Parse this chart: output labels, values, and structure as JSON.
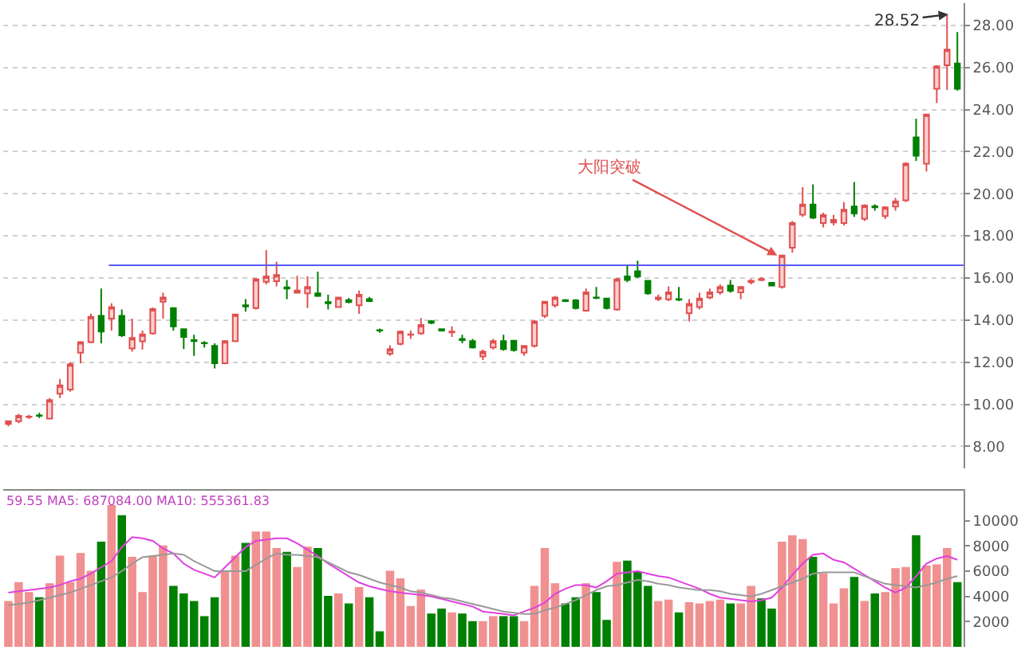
{
  "chart_data": [
    {
      "type": "candlestick",
      "categories": [
        null,
        null,
        null,
        null,
        null,
        null,
        null,
        null,
        null,
        null,
        null,
        null,
        null,
        null,
        null,
        null,
        null,
        null,
        null,
        null,
        null,
        null,
        null,
        null,
        null,
        null,
        null,
        null,
        null,
        null,
        null,
        null,
        null,
        null,
        null,
        null,
        null,
        null,
        null,
        null,
        null,
        null,
        null,
        null,
        null,
        null,
        null,
        null,
        null,
        null,
        null,
        null,
        null,
        null,
        null,
        null,
        null,
        null,
        null,
        null,
        null,
        null,
        null,
        null,
        null,
        null,
        null,
        null,
        null,
        null,
        null,
        null,
        null,
        null,
        null,
        null,
        null,
        null,
        null,
        null,
        null,
        null,
        null,
        null,
        null,
        null,
        null,
        null,
        null,
        null,
        null,
        null,
        null
      ],
      "ohlc": [
        [
          9.07,
          9.2,
          8.95,
          9.2
        ],
        [
          9.2,
          9.55,
          9.1,
          9.45
        ],
        [
          9.4,
          9.5,
          9.3,
          9.42
        ],
        [
          9.47,
          9.6,
          9.35,
          9.45
        ],
        [
          9.32,
          10.3,
          9.3,
          10.2
        ],
        [
          10.5,
          11.2,
          10.3,
          10.9
        ],
        [
          10.7,
          12.0,
          10.6,
          11.9
        ],
        [
          12.45,
          13.0,
          11.95,
          12.95
        ],
        [
          12.95,
          14.3,
          12.9,
          14.15
        ],
        [
          14.2,
          15.5,
          12.9,
          13.45
        ],
        [
          14.07,
          14.8,
          13.5,
          14.62
        ],
        [
          14.2,
          14.5,
          13.2,
          13.27
        ],
        [
          12.65,
          14.07,
          12.5,
          13.15
        ],
        [
          12.99,
          13.5,
          12.6,
          13.32
        ],
        [
          13.37,
          14.6,
          13.3,
          14.52
        ],
        [
          14.87,
          15.3,
          14.07,
          15.07
        ],
        [
          14.57,
          14.6,
          13.5,
          13.7
        ],
        [
          13.57,
          13.6,
          12.62,
          13.2
        ],
        [
          13.05,
          13.3,
          12.3,
          13.0
        ],
        [
          12.92,
          13.0,
          12.7,
          12.9
        ],
        [
          12.77,
          12.9,
          11.7,
          11.95
        ],
        [
          11.95,
          13.05,
          11.9,
          13.0
        ],
        [
          13.0,
          14.3,
          12.95,
          14.27
        ],
        [
          14.7,
          15.0,
          14.4,
          14.65
        ],
        [
          14.57,
          16.0,
          14.5,
          15.94
        ],
        [
          15.82,
          17.32,
          15.7,
          16.07
        ],
        [
          15.85,
          16.77,
          15.6,
          16.14
        ],
        [
          15.55,
          15.9,
          15.0,
          15.5
        ],
        [
          15.3,
          16.1,
          15.3,
          15.4
        ],
        [
          15.27,
          16.07,
          14.57,
          15.57
        ],
        [
          15.27,
          16.3,
          15.1,
          15.15
        ],
        [
          14.85,
          15.2,
          14.5,
          14.8
        ],
        [
          14.62,
          15.1,
          14.6,
          15.07
        ],
        [
          14.95,
          15.05,
          14.8,
          14.85
        ],
        [
          14.7,
          15.4,
          14.3,
          15.2
        ],
        [
          15.0,
          15.1,
          14.85,
          14.9
        ],
        [
          13.52,
          13.6,
          13.4,
          13.5
        ],
        [
          12.4,
          12.8,
          12.3,
          12.62
        ],
        [
          12.87,
          13.5,
          12.8,
          13.45
        ],
        [
          13.3,
          13.5,
          13.1,
          13.32
        ],
        [
          13.37,
          14.1,
          13.3,
          13.77
        ],
        [
          13.95,
          14.0,
          13.8,
          13.87
        ],
        [
          13.57,
          13.6,
          13.45,
          13.5
        ],
        [
          13.42,
          13.7,
          13.2,
          13.45
        ],
        [
          13.1,
          13.3,
          12.9,
          13.05
        ],
        [
          13.0,
          13.1,
          12.65,
          12.7
        ],
        [
          12.27,
          12.6,
          12.1,
          12.5
        ],
        [
          12.7,
          13.1,
          12.6,
          13.0
        ],
        [
          13.0,
          13.3,
          12.55,
          12.62
        ],
        [
          13.02,
          13.05,
          12.5,
          12.57
        ],
        [
          12.45,
          12.8,
          12.3,
          12.77
        ],
        [
          12.77,
          14.0,
          12.7,
          13.94
        ],
        [
          14.2,
          14.9,
          14.1,
          14.87
        ],
        [
          14.7,
          15.15,
          14.6,
          15.07
        ],
        [
          14.95,
          15.0,
          14.85,
          14.9
        ],
        [
          14.94,
          15.0,
          14.5,
          14.57
        ],
        [
          14.45,
          15.5,
          14.4,
          15.32
        ],
        [
          15.07,
          15.57,
          15.0,
          15.05
        ],
        [
          15.02,
          15.05,
          14.5,
          14.57
        ],
        [
          14.5,
          16.0,
          14.45,
          15.94
        ],
        [
          16.07,
          16.57,
          15.8,
          15.9
        ],
        [
          16.32,
          16.82,
          16.0,
          16.07
        ],
        [
          15.87,
          15.9,
          15.2,
          15.27
        ],
        [
          15.0,
          15.2,
          14.9,
          15.07
        ],
        [
          14.99,
          15.6,
          14.9,
          15.32
        ],
        [
          15.0,
          15.57,
          14.9,
          14.97
        ],
        [
          14.32,
          15.0,
          13.94,
          14.77
        ],
        [
          14.62,
          15.3,
          14.5,
          15.02
        ],
        [
          15.07,
          15.5,
          15.0,
          15.32
        ],
        [
          15.32,
          15.7,
          15.2,
          15.57
        ],
        [
          15.64,
          15.9,
          15.3,
          15.39
        ],
        [
          15.32,
          15.6,
          15.0,
          15.57
        ],
        [
          15.8,
          15.95,
          15.7,
          15.87
        ],
        [
          15.9,
          16.05,
          15.85,
          15.95
        ],
        [
          15.77,
          15.8,
          15.6,
          15.64
        ],
        [
          15.57,
          17.1,
          15.5,
          17.07
        ],
        [
          17.44,
          18.7,
          17.2,
          18.61
        ],
        [
          19.01,
          20.31,
          18.9,
          19.49
        ],
        [
          19.49,
          20.44,
          18.8,
          18.86
        ],
        [
          18.61,
          19.1,
          18.4,
          18.99
        ],
        [
          18.64,
          19.0,
          18.5,
          18.76
        ],
        [
          18.61,
          19.6,
          18.5,
          19.24
        ],
        [
          19.39,
          20.56,
          18.9,
          19.06
        ],
        [
          18.81,
          19.5,
          18.7,
          19.44
        ],
        [
          19.4,
          19.5,
          19.2,
          19.36
        ],
        [
          18.94,
          19.4,
          18.8,
          19.36
        ],
        [
          19.39,
          19.8,
          19.2,
          19.64
        ],
        [
          19.69,
          21.5,
          19.6,
          21.43
        ],
        [
          22.68,
          23.56,
          21.56,
          21.81
        ],
        [
          21.43,
          23.8,
          21.06,
          23.76
        ],
        [
          24.98,
          26.1,
          24.31,
          26.05
        ],
        [
          26.1,
          28.52,
          24.93,
          26.85
        ],
        [
          26.18,
          27.68,
          24.9,
          24.98
        ]
      ],
      "ref_lines": [
        {
          "axis": "y",
          "value": 16.6,
          "color": "#5a5af0"
        }
      ],
      "ylim": [
        6.95,
        29.05
      ],
      "yticks": [
        {
          "value": 8,
          "label": "8.00"
        },
        {
          "value": 10,
          "label": "10.00"
        },
        {
          "value": 12,
          "label": "12.00"
        },
        {
          "value": 14,
          "label": "14.00"
        },
        {
          "value": 16,
          "label": "16.00"
        },
        {
          "value": 18,
          "label": "18.00"
        },
        {
          "value": 20,
          "label": "20.00"
        },
        {
          "value": 22,
          "label": "22.00"
        },
        {
          "value": 24,
          "label": "24.00"
        },
        {
          "value": 26,
          "label": "26.00"
        },
        {
          "value": 28,
          "label": "28.00"
        }
      ],
      "grid": "y",
      "tick_labels": "y",
      "annotations": [
        "大阳突破",
        "28.52"
      ]
    },
    {
      "type": "bar",
      "categories": [
        null,
        null,
        null,
        null,
        null,
        null,
        null,
        null,
        null,
        null,
        null,
        null,
        null,
        null,
        null,
        null,
        null,
        null,
        null,
        null,
        null,
        null,
        null,
        null,
        null,
        null,
        null,
        null,
        null,
        null,
        null,
        null,
        null,
        null,
        null,
        null,
        null,
        null,
        null,
        null,
        null,
        null,
        null,
        null,
        null,
        null,
        null,
        null,
        null,
        null,
        null,
        null,
        null,
        null,
        null,
        null,
        null,
        null,
        null,
        null,
        null,
        null,
        null,
        null,
        null,
        null,
        null,
        null,
        null,
        null,
        null,
        null,
        null,
        null,
        null,
        null,
        null,
        null,
        null,
        null,
        null,
        null,
        null,
        null,
        null,
        null,
        null,
        null,
        null,
        null,
        null,
        null,
        null
      ],
      "values": [
        3600,
        5100,
        4300,
        3900,
        5000,
        7200,
        5100,
        7400,
        6000,
        8300,
        11200,
        10400,
        7100,
        4300,
        7200,
        8000,
        4800,
        4200,
        3600,
        2400,
        3900,
        5900,
        7200,
        8200,
        9100,
        9100,
        7800,
        7500,
        6300,
        7900,
        7800,
        4000,
        4200,
        3400,
        4700,
        3900,
        1200,
        6000,
        5400,
        3200,
        4500,
        2600,
        3000,
        2700,
        2600,
        2000,
        2000,
        2400,
        2400,
        2400,
        2000,
        4800,
        7800,
        5000,
        3400,
        3900,
        5000,
        4300,
        2100,
        6700,
        6800,
        5900,
        4800,
        3600,
        3700,
        2700,
        3500,
        3400,
        3600,
        3700,
        3400,
        3400,
        4800,
        3800,
        3000,
        8300,
        8800,
        8500,
        7100,
        5800,
        3400,
        4600,
        5500,
        3600,
        4200,
        4300,
        6200,
        6300,
        8800,
        6400,
        6500,
        7800,
        5100
      ],
      "colors": [
        "#f09090",
        "#f09090",
        "#f09090",
        "#008000",
        "#f09090",
        "#f09090",
        "#f09090",
        "#f09090",
        "#f09090",
        "#008000",
        "#f09090",
        "#008000",
        "#f09090",
        "#f09090",
        "#f09090",
        "#f09090",
        "#008000",
        "#008000",
        "#008000",
        "#008000",
        "#008000",
        "#f09090",
        "#f09090",
        "#008000",
        "#f09090",
        "#f09090",
        "#f09090",
        "#008000",
        "#f09090",
        "#f09090",
        "#008000",
        "#008000",
        "#f09090",
        "#008000",
        "#f09090",
        "#008000",
        "#008000",
        "#f09090",
        "#f09090",
        "#f09090",
        "#f09090",
        "#008000",
        "#008000",
        "#f09090",
        "#008000",
        "#008000",
        "#f09090",
        "#f09090",
        "#008000",
        "#008000",
        "#f09090",
        "#f09090",
        "#f09090",
        "#f09090",
        "#008000",
        "#008000",
        "#f09090",
        "#008000",
        "#008000",
        "#f09090",
        "#008000",
        "#008000",
        "#008000",
        "#f09090",
        "#f09090",
        "#008000",
        "#f09090",
        "#f09090",
        "#f09090",
        "#f09090",
        "#008000",
        "#f09090",
        "#f09090",
        "#008000",
        "#008000",
        "#f09090",
        "#f09090",
        "#f09090",
        "#008000",
        "#f09090",
        "#f09090",
        "#f09090",
        "#008000",
        "#f09090",
        "#008000",
        "#f09090",
        "#f09090",
        "#f09090",
        "#008000",
        "#f09090",
        "#f09090",
        "#f09090",
        "#008000"
      ],
      "series": [
        {
          "type": "line",
          "color": "#e040e0",
          "values": [
            4300,
            4400,
            4500,
            4600,
            4700,
            4900,
            5200,
            5400,
            5800,
            6300,
            6800,
            7900,
            8700,
            8600,
            8400,
            7800,
            7400,
            6600,
            6100,
            5800,
            5500,
            6300,
            7100,
            7900,
            8400,
            8500,
            8600,
            8600,
            8200,
            7700,
            7200,
            6600,
            6100,
            5600,
            5100,
            4800,
            4600,
            4400,
            4300,
            4200,
            4100,
            4000,
            3800,
            3600,
            3400,
            3200,
            2800,
            2700,
            2600,
            2500,
            2800,
            3100,
            3500,
            4200,
            4600,
            4900,
            4900,
            4700,
            5200,
            5800,
            5900,
            6000,
            5800,
            5600,
            5500,
            5200,
            4900,
            4600,
            4200,
            3900,
            3800,
            3700,
            3600,
            3700,
            3900,
            4700,
            5700,
            6600,
            7300,
            7400,
            6900,
            6700,
            6200,
            5700,
            5200,
            4700,
            4300,
            4700,
            5600,
            6600,
            7000,
            7200,
            6900
          ]
        },
        {
          "type": "line",
          "color": "#999999",
          "values": [
            3300,
            3400,
            3500,
            3700,
            3900,
            4100,
            4300,
            4600,
            4900,
            5200,
            5500,
            6000,
            6600,
            7100,
            7200,
            7300,
            7400,
            7300,
            6800,
            6400,
            6000,
            6000,
            6000,
            6000,
            6500,
            7000,
            7400,
            7300,
            7300,
            7200,
            7100,
            6700,
            6300,
            5900,
            5700,
            5400,
            5100,
            4900,
            4700,
            4400,
            4300,
            4100,
            3900,
            3800,
            3600,
            3400,
            3200,
            3000,
            2800,
            2700,
            2600,
            2600,
            2900,
            3100,
            3400,
            3700,
            4100,
            4500,
            4800,
            4900,
            5100,
            5300,
            5200,
            5000,
            4900,
            4700,
            4600,
            4500,
            4500,
            4400,
            4200,
            4100,
            4000,
            4200,
            4500,
            4800,
            5100,
            5400,
            5800,
            5900,
            5900,
            5900,
            5900,
            5600,
            5300,
            5000,
            4900,
            4800,
            4700,
            4900,
            5100,
            5400,
            5600
          ]
        }
      ],
      "ylim": [
        0,
        12400
      ],
      "yticks": [
        2000,
        4000,
        6000,
        8000,
        10000
      ],
      "tick_labels": "y",
      "annotations": [
        "59.55 MA5: 687084.00 MA10: 555361.83"
      ]
    }
  ]
}
